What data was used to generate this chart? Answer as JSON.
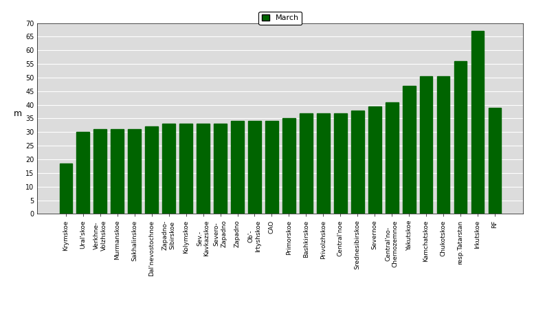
{
  "x_labels": [
    "Krymskoe",
    "Ural'skoe",
    "Verkhne-\nVolzhskoe",
    "Murmanskoe",
    "Sakhalinskoe",
    "Dal'nevostochnoe",
    "Zapadno-\nSibirskoe",
    "Kolymskoe",
    "Sev.-\nKavkazskoe",
    "Severo-\nZapadno",
    "Zapadno",
    "Ob'-\nIrtyshskoe",
    "CAO",
    "Primorskoe",
    "Bashkirskoe",
    "Privolzhskoe",
    "Central'noe",
    "Srednesibirskoe",
    "Severnoe",
    "Central'no-\nChernozemnoe",
    "Yakutskoe",
    "Kamchatskoe",
    "Chukotskoe",
    "resp.Tatarstan",
    "Irkutskoe",
    "RF"
  ],
  "values": [
    18.5,
    30.0,
    31.0,
    31.0,
    31.0,
    32.0,
    33.0,
    33.0,
    33.0,
    33.0,
    34.0,
    34.0,
    34.0,
    35.0,
    37.0,
    37.0,
    37.0,
    38.0,
    39.5,
    41.0,
    47.0,
    50.5,
    50.5,
    56.0,
    67.0,
    39.0
  ],
  "bar_color": "#006400",
  "ylabel": "m",
  "ylim": [
    0,
    70
  ],
  "yticks": [
    0,
    5,
    10,
    15,
    20,
    25,
    30,
    35,
    40,
    45,
    50,
    55,
    60,
    65,
    70
  ],
  "legend_label": "March",
  "axis_bg_color": "#dcdcdc",
  "fig_bg_color": "#ffffff",
  "grid_color": "#ffffff"
}
